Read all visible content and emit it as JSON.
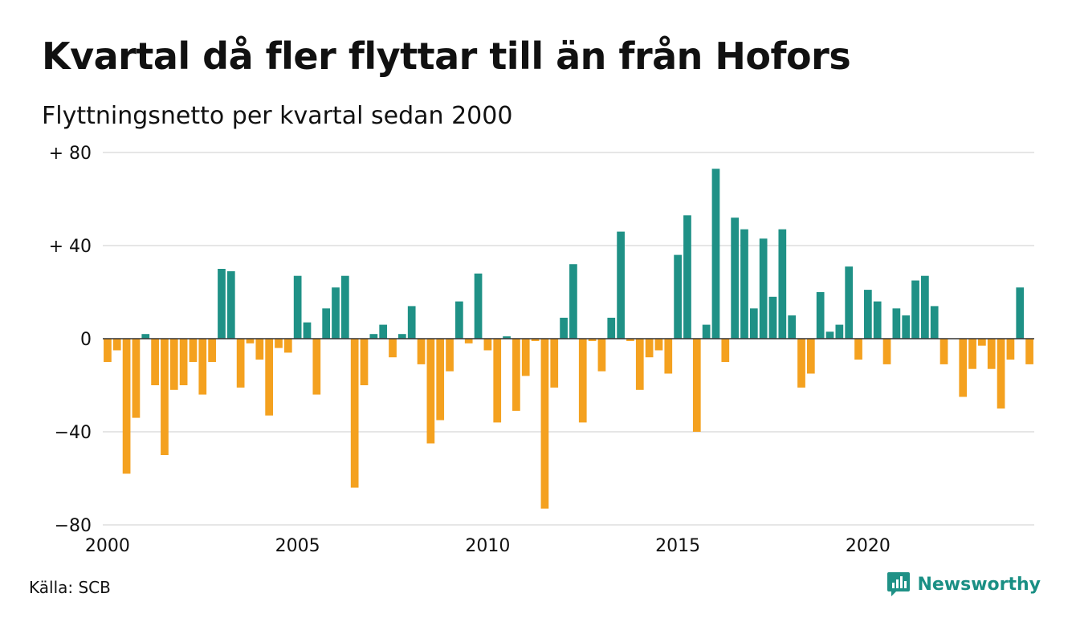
{
  "title": "Kvartal då fler flyttar till än från Hofors",
  "subtitle": "Flyttningsnetto per kvartal sedan 2000",
  "source": "Källa: SCB",
  "brand": {
    "name": "Newsworthy",
    "icon": "bar-chart-logo-icon"
  },
  "colors": {
    "positive": "#1f9186",
    "negative": "#f4a11f",
    "grid": "#dddddd",
    "zero_line": "#333333"
  },
  "chart_data": {
    "type": "bar",
    "title": "Kvartal då fler flyttar till än från Hofors",
    "subtitle": "Flyttningsnetto per kvartal sedan 2000",
    "x_start_year": 2000,
    "x_end_year": 2024,
    "x_ticks": [
      2000,
      2005,
      2010,
      2015,
      2020
    ],
    "x_tick_labels": [
      "2000",
      "2005",
      "2010",
      "2015",
      "2020"
    ],
    "y_ticks": [
      80,
      40,
      0,
      -40,
      -80
    ],
    "y_tick_labels": [
      "+ 80",
      "+ 40",
      "0",
      "−40",
      "−80"
    ],
    "ylim": [
      -80,
      80
    ],
    "grid": true,
    "periods_per_year": 4,
    "values": [
      -10,
      -5,
      -58,
      -34,
      2,
      -20,
      -50,
      -22,
      -20,
      -10,
      -24,
      -10,
      30,
      29,
      -21,
      -2,
      -9,
      -33,
      -4,
      -6,
      27,
      7,
      -24,
      13,
      22,
      27,
      -64,
      -20,
      2,
      6,
      -8,
      2,
      14,
      -11,
      -45,
      -35,
      -14,
      16,
      -2,
      28,
      -5,
      -36,
      1,
      -31,
      -16,
      -1,
      -73,
      -21,
      9,
      32,
      -36,
      -1,
      -14,
      9,
      46,
      -1,
      -22,
      -8,
      -5,
      -15,
      36,
      53,
      -40,
      6,
      73,
      -10,
      52,
      47,
      13,
      43,
      18,
      47,
      10,
      -21,
      -15,
      20,
      3,
      6,
      31,
      -9,
      21,
      16,
      -11,
      13,
      10,
      25,
      27,
      14,
      -11,
      0,
      -25,
      -13,
      -3,
      -13,
      -30,
      -9,
      22,
      -11
    ]
  }
}
